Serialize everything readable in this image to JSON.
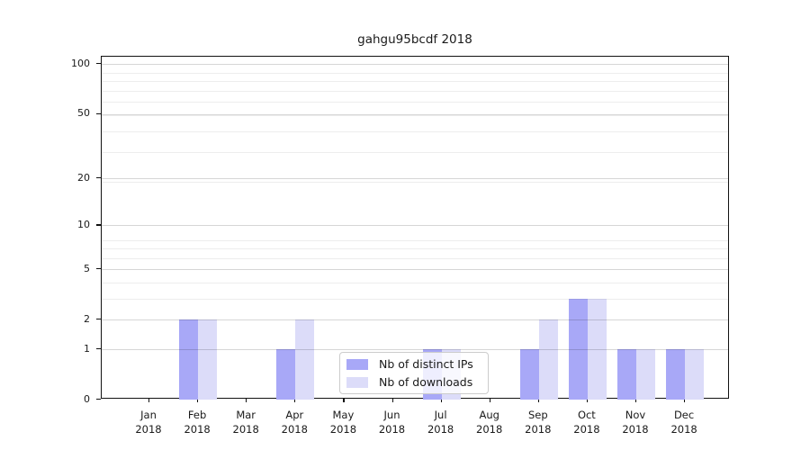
{
  "chart_data": {
    "type": "bar",
    "title": "gahgu95bcdf 2018",
    "categories": [
      "Jan",
      "Feb",
      "Mar",
      "Apr",
      "May",
      "Jun",
      "Jul",
      "Aug",
      "Sep",
      "Oct",
      "Nov",
      "Dec"
    ],
    "year_label": "2018",
    "series": [
      {
        "name": "Nb of distinct IPs",
        "color": "#a8a8f7",
        "values": [
          0,
          2,
          0,
          1,
          0,
          0,
          1,
          0,
          1,
          3,
          1,
          1
        ]
      },
      {
        "name": "Nb of downloads",
        "color": "#dcdcf9",
        "values": [
          0,
          2,
          0,
          2,
          0,
          0,
          1,
          0,
          2,
          3,
          1,
          1
        ]
      }
    ],
    "yscale": "log10(1+x)",
    "ylim": [
      0,
      111
    ],
    "yticks": [
      0,
      1,
      2,
      5,
      10,
      20,
      50,
      100
    ],
    "minor_yticks": [
      3,
      4,
      6,
      7,
      8,
      19,
      29,
      39,
      49,
      59,
      69,
      79,
      89
    ],
    "grid": "horizontal",
    "legend_position": "lower center inside"
  }
}
